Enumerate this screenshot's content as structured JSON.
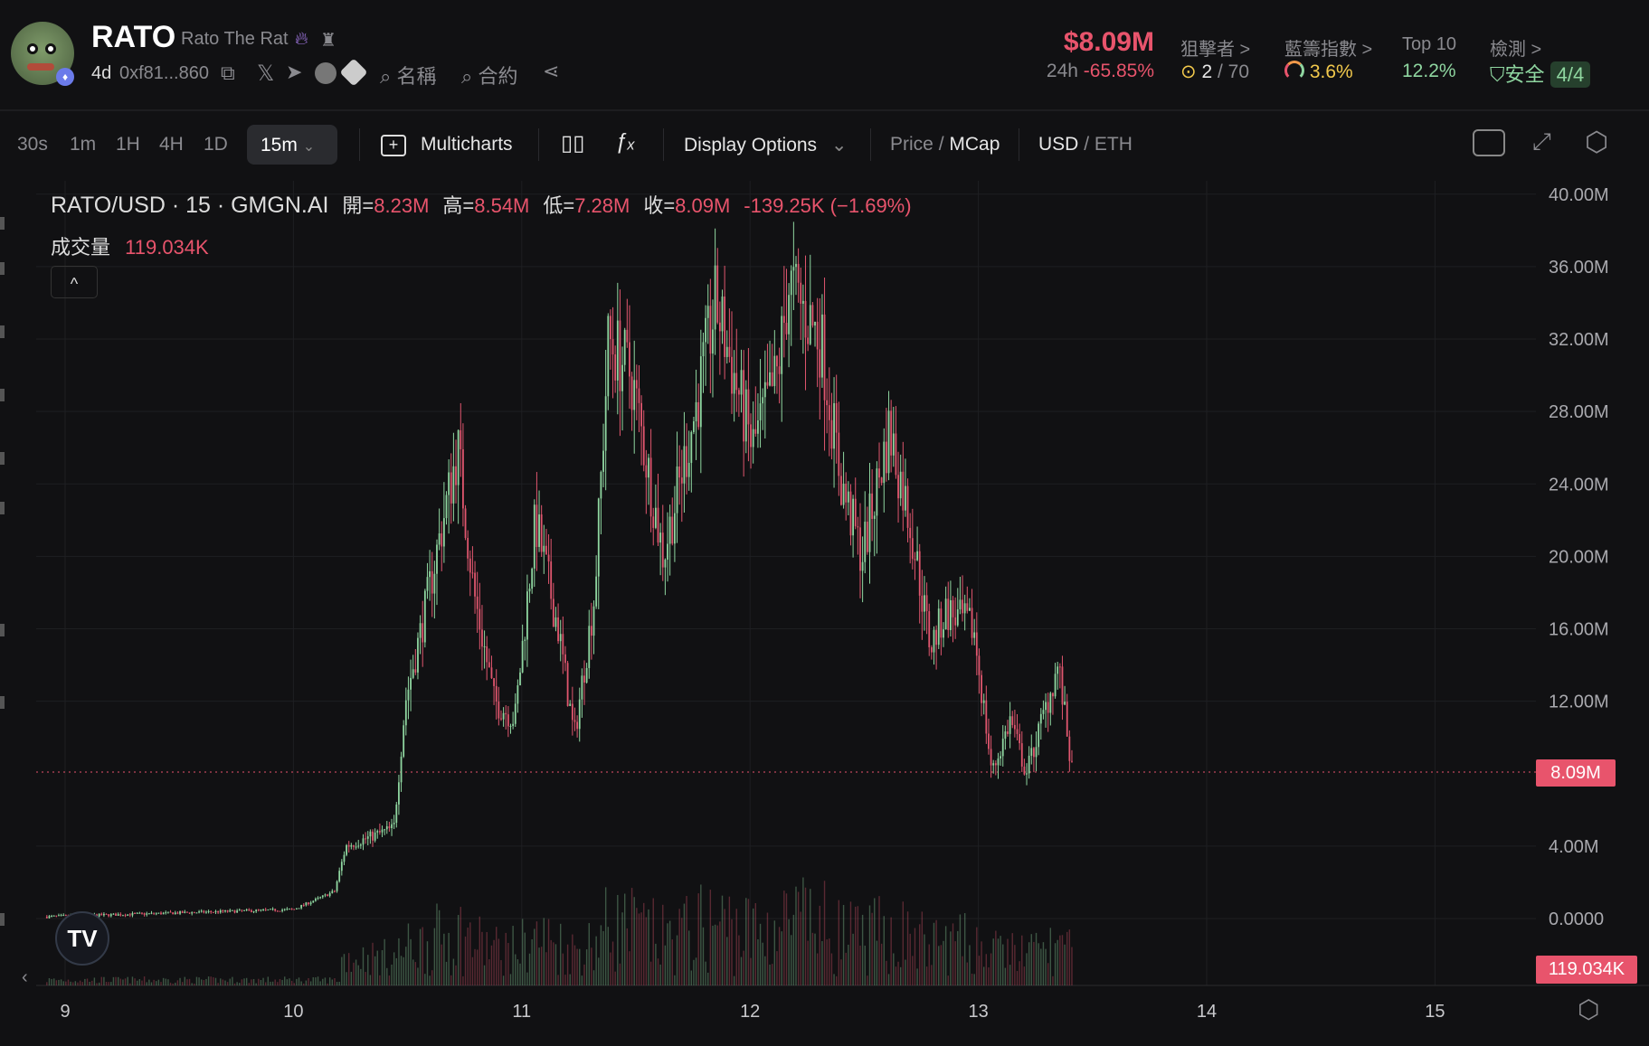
{
  "token": {
    "symbol": "RATO",
    "name": "Rato The Rat",
    "age": "4d",
    "address": "0xf81...860",
    "search_name": "名稱",
    "search_contract": "合約",
    "icons": [
      "fire-icon",
      "dev-icon",
      "copy-icon",
      "x-icon",
      "telegram-icon",
      "chart-site-icon",
      "tag-icon",
      "search-icon",
      "share-icon",
      "eth-chain-icon"
    ]
  },
  "stats": {
    "mcap": "$8.09M",
    "change_label": "24h",
    "change_value": "-65.85%",
    "sniper_label": "狙擊者 >",
    "sniper_value": "2",
    "sniper_total": "/ 70",
    "bluechip_label": "藍籌指數 >",
    "bluechip_value": "3.6%",
    "top10_label": "Top 10",
    "top10_value": "12.2%",
    "audit_label": "檢測 >",
    "audit_value": "安全",
    "audit_score": "4/4"
  },
  "toolbar": {
    "intervals": [
      "30s",
      "1m",
      "1H",
      "4H",
      "1D"
    ],
    "selected_interval": "15m",
    "multicharts": "Multicharts",
    "display_options": "Display Options",
    "price_label": "Price",
    "sep": "/",
    "mcap_label": "MCap",
    "usd_label": "USD",
    "eth_label": "ETH"
  },
  "legend": {
    "title": "RATO/USD · 15 · GMGN.AI",
    "open_label": "開=",
    "open": "8.23M",
    "high_label": "高=",
    "high": "8.54M",
    "low_label": "低=",
    "low": "7.28M",
    "close_label": "收=",
    "close": "8.09M",
    "change": "-139.25K (−1.69%)",
    "volume_label": "成交量",
    "volume": "119.034K"
  },
  "colors": {
    "up": "#8fd6a0",
    "down": "#e0566e",
    "accent_red": "#e8546c",
    "background": "#111113"
  },
  "chart_data": {
    "type": "candlestick",
    "x_tick_labels": [
      "9",
      "10",
      "11",
      "12",
      "13",
      "14",
      "15"
    ],
    "y_tick_labels": [
      "40.00M",
      "36.00M",
      "32.00M",
      "28.00M",
      "24.00M",
      "20.00M",
      "16.00M",
      "12.00M",
      "4.00M",
      "0.0000"
    ],
    "ylim": [
      0,
      40
    ],
    "y_unit": "M USD (MCap)",
    "grid": true,
    "last_price_label": "8.09M",
    "last_volume_label": "119.034K",
    "approx_close_path": {
      "day": [
        8.92,
        10.0,
        10.18,
        10.23,
        10.44,
        10.49,
        10.56,
        10.72,
        10.79,
        10.88,
        10.97,
        11.06,
        11.16,
        11.23,
        11.32,
        11.38,
        11.48,
        11.62,
        11.76,
        11.85,
        12.01,
        12.12,
        12.17,
        12.31,
        12.4,
        12.49,
        12.61,
        12.7,
        12.79,
        12.86,
        12.98,
        13.06,
        13.14,
        13.21,
        13.35,
        13.41
      ],
      "mcap": [
        0.1,
        0.5,
        1.5,
        4,
        5,
        12,
        16,
        26,
        18,
        12,
        11,
        22,
        16,
        10,
        18,
        32,
        30,
        20,
        28,
        34,
        26,
        30,
        35,
        32,
        24,
        20,
        27,
        22,
        15,
        17,
        16,
        8,
        11,
        8,
        14,
        8.09
      ]
    }
  }
}
